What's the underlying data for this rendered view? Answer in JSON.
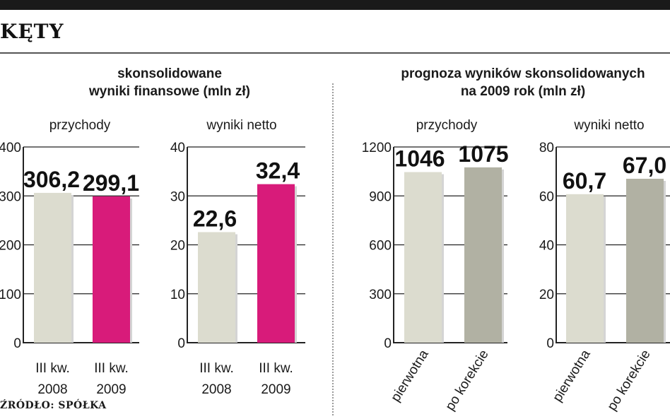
{
  "header": {
    "brand": "KĘTY",
    "source": "ŹRÓDŁO: SPÓŁKA"
  },
  "sections": [
    {
      "title_lines": [
        "skonsolidowane",
        "wyniki finansowe (mln zł)"
      ]
    },
    {
      "title_lines": [
        "prognoza wyników skonsolidowanych",
        "na 2009 rok (mln zł)"
      ]
    }
  ],
  "colors": {
    "light_bar": "#dcdccf",
    "magenta_bar": "#d81b7a",
    "grey_bar": "#b1b1a3",
    "axis": "#222222",
    "grid": "#222222"
  },
  "chart_data": [
    {
      "type": "bar",
      "title": "przychody",
      "ylim": [
        0,
        400
      ],
      "ticks": [
        "400",
        "300",
        "200",
        "100",
        "0"
      ],
      "tick_values": [
        400,
        300,
        200,
        100,
        0
      ],
      "categories": [
        [
          "III kw.",
          "2008"
        ],
        [
          "III  kw.",
          "2009"
        ]
      ],
      "values": [
        306.2,
        299.1
      ],
      "labels": [
        "306,2",
        "299,1"
      ],
      "bar_colors": [
        "light_bar",
        "magenta_bar"
      ],
      "rotate_categories": false
    },
    {
      "type": "bar",
      "title": "wyniki netto",
      "ylim": [
        0,
        40
      ],
      "ticks": [
        "40",
        "30",
        "20",
        "10",
        "0"
      ],
      "tick_values": [
        40,
        30,
        20,
        10,
        0
      ],
      "categories": [
        [
          "III kw.",
          "2008"
        ],
        [
          "III kw.",
          "2009"
        ]
      ],
      "values": [
        22.6,
        32.4
      ],
      "labels": [
        "22,6",
        "32,4"
      ],
      "bar_colors": [
        "light_bar",
        "magenta_bar"
      ],
      "rotate_categories": false
    },
    {
      "type": "bar",
      "title": "przychody",
      "ylim": [
        0,
        1200
      ],
      "ticks": [
        "1200",
        "900",
        "600",
        "300",
        "0"
      ],
      "tick_values": [
        1200,
        900,
        600,
        300,
        0
      ],
      "categories": [
        [
          "pierwotna"
        ],
        [
          "po korekcie"
        ]
      ],
      "values": [
        1046,
        1075
      ],
      "labels": [
        "1046",
        "1075"
      ],
      "bar_colors": [
        "light_bar",
        "grey_bar"
      ],
      "rotate_categories": true
    },
    {
      "type": "bar",
      "title": "wyniki netto",
      "ylim": [
        0,
        80
      ],
      "ticks": [
        "80",
        "60",
        "40",
        "20",
        "0"
      ],
      "tick_values": [
        80,
        60,
        40,
        20,
        0
      ],
      "categories": [
        [
          "pierwotna"
        ],
        [
          "po korekcie"
        ]
      ],
      "values": [
        60.7,
        67.0
      ],
      "labels": [
        "60,7",
        "67,0"
      ],
      "bar_colors": [
        "light_bar",
        "grey_bar"
      ],
      "rotate_categories": true
    }
  ]
}
